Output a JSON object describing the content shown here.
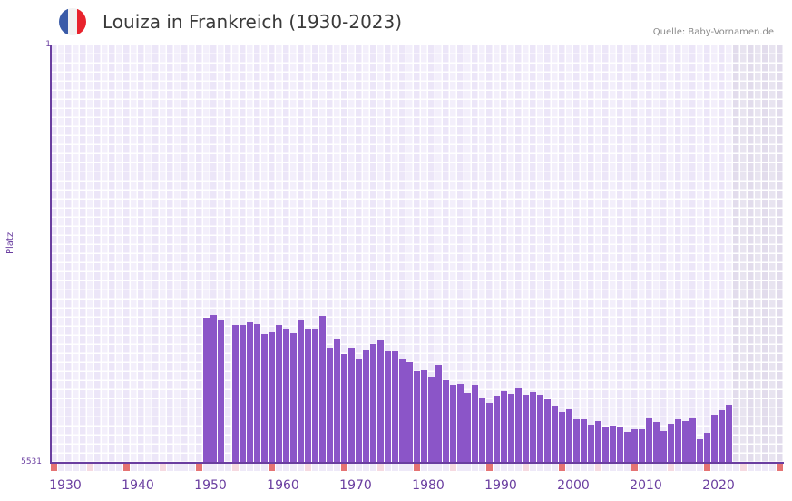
{
  "header": {
    "title": "Louiza in Frankreich (1930-2023)",
    "source": "Quelle: Baby-Vornamen.de",
    "flag_colors": [
      "#3a5ba8",
      "#f2f2f2",
      "#e8232d"
    ]
  },
  "colors": {
    "bar": "#8b55c8",
    "axis": "#6a3ea0",
    "grid_light": "#f3effb",
    "grid_dark": "#ece6f8",
    "shade_light": "#e8e4f0",
    "shade_dark": "#e2dcec",
    "tick_major": "#e57373",
    "tick_minor": "#f6d9e0",
    "tick_default": "#eee9f8"
  },
  "chart_data": {
    "type": "bar",
    "title": "Louiza in Frankreich (1930-2023)",
    "xlabel": "",
    "ylabel": "Platz",
    "y_inverted": true,
    "ylim": [
      1,
      5531
    ],
    "ytick_labels": [
      "1",
      "5531"
    ],
    "xtick_labels": [
      "1930",
      "1940",
      "1950",
      "1960",
      "1970",
      "1980",
      "1990",
      "2000",
      "2010",
      "2020"
    ],
    "x_range": [
      1930,
      2030
    ],
    "shaded_from": 2024,
    "grid": true,
    "legend": null,
    "categories": [
      1951,
      1952,
      1953,
      1955,
      1956,
      1957,
      1958,
      1959,
      1960,
      1961,
      1962,
      1963,
      1964,
      1965,
      1966,
      1967,
      1968,
      1969,
      1970,
      1971,
      1972,
      1973,
      1974,
      1975,
      1976,
      1977,
      1978,
      1979,
      1980,
      1981,
      1982,
      1983,
      1984,
      1985,
      1986,
      1987,
      1988,
      1989,
      1990,
      1991,
      1992,
      1993,
      1994,
      1995,
      1996,
      1997,
      1998,
      1999,
      2000,
      2001,
      2002,
      2003,
      2004,
      2005,
      2006,
      2007,
      2008,
      2009,
      2010,
      2011,
      2012,
      2013,
      2014,
      2015,
      2016,
      2017,
      2018,
      2019,
      2020,
      2021,
      2022,
      2023
    ],
    "values": [
      3608,
      3571,
      3643,
      3703,
      3703,
      3667,
      3691,
      3824,
      3800,
      3703,
      3764,
      3812,
      3643,
      3752,
      3764,
      3583,
      4004,
      3896,
      4088,
      4004,
      4148,
      4040,
      3956,
      3908,
      4052,
      4052,
      4160,
      4196,
      4317,
      4305,
      4389,
      4233,
      4437,
      4497,
      4485,
      4605,
      4497,
      4665,
      4737,
      4641,
      4581,
      4617,
      4545,
      4629,
      4593,
      4629,
      4689,
      4773,
      4858,
      4822,
      4954,
      4954,
      5026,
      4978,
      5050,
      5038,
      5050,
      5122,
      5086,
      5086,
      4942,
      4990,
      5110,
      5014,
      4954,
      4978,
      4942,
      5218,
      5134,
      4894,
      4834,
      4762
    ]
  },
  "layout": {
    "xtick_label_x": [
      72,
      152,
      232,
      312,
      392,
      472,
      552,
      632,
      712,
      792
    ]
  }
}
